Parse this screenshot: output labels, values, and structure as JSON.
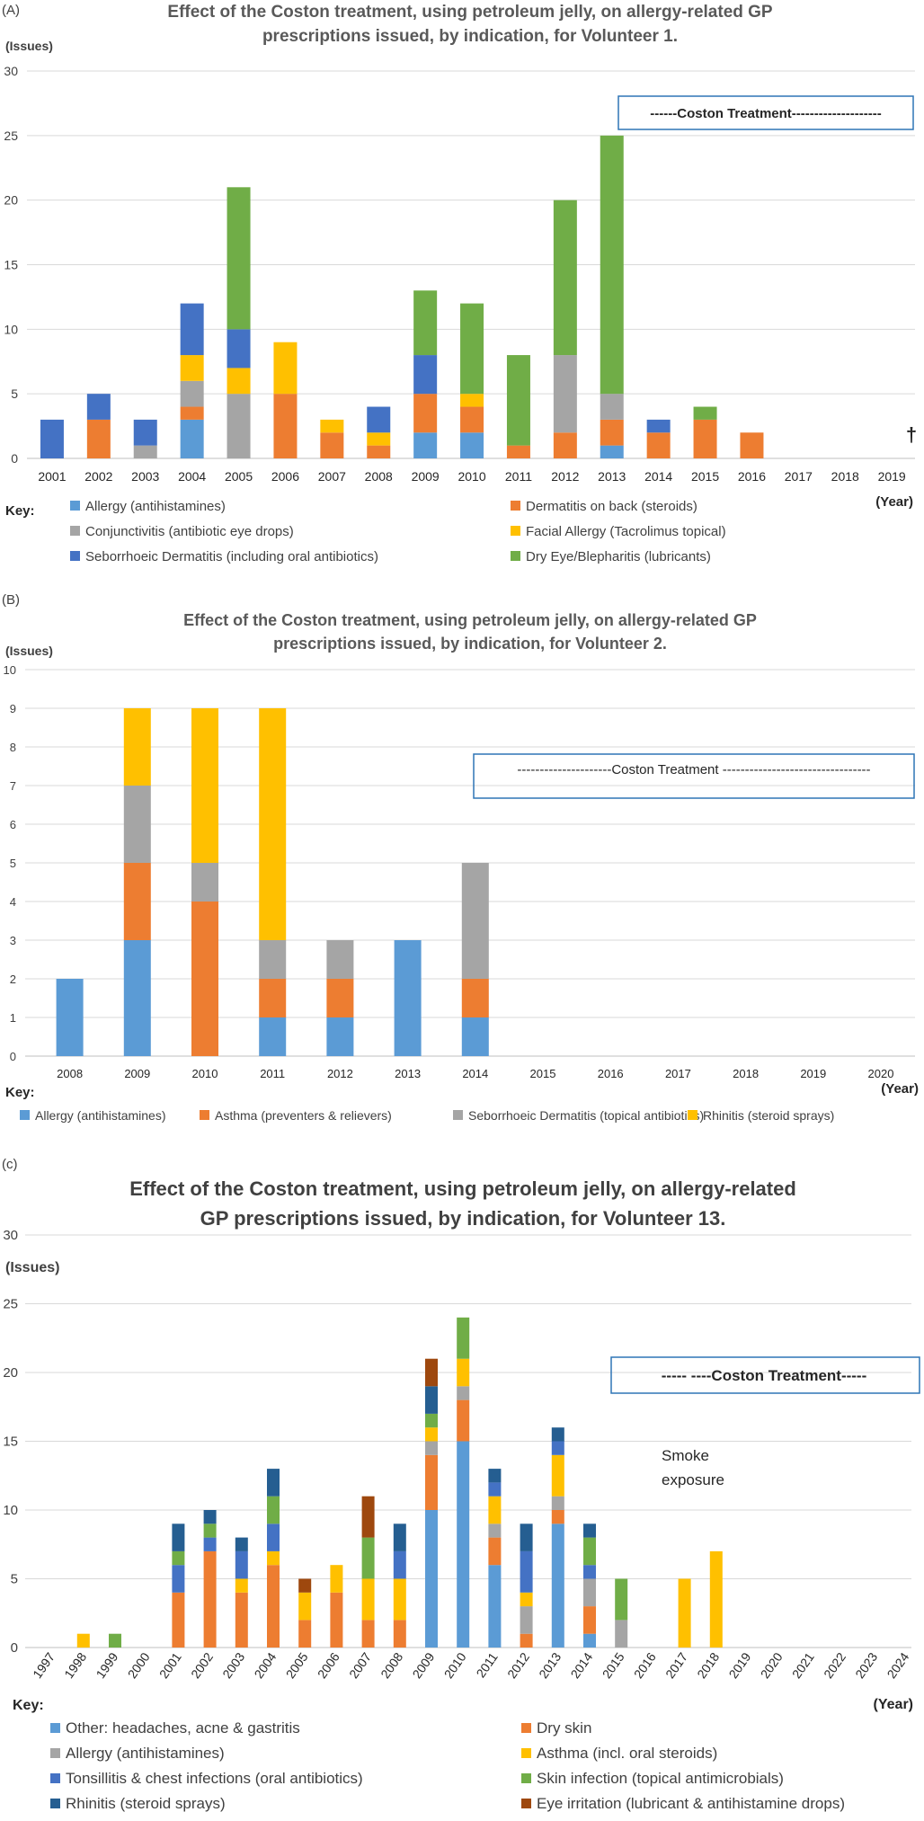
{
  "chart_data": [
    {
      "type": "bar",
      "stacked": true,
      "panel_label": "(A)",
      "title": [
        "Effect of the Coston treatment, using petroleum jelly, on allergy-related GP",
        "prescriptions issued, by indication, for Volunteer 1."
      ],
      "ylabel": "(Issues)",
      "xlabel": "(Year)",
      "key_label": "Key:",
      "ylim": [
        0,
        30
      ],
      "yticks": [
        0,
        5,
        10,
        15,
        20,
        25,
        30
      ],
      "categories": [
        "2001",
        "2002",
        "2003",
        "2004",
        "2005",
        "2006",
        "2007",
        "2008",
        "2009",
        "2010",
        "2011",
        "2012",
        "2013",
        "2014",
        "2015",
        "2016",
        "2017",
        "2018",
        "2019"
      ],
      "series": [
        {
          "name": "Allergy (antihistamines)",
          "color": "#5b9bd5",
          "values": [
            0,
            0,
            0,
            3,
            0,
            0,
            0,
            0,
            2,
            2,
            0,
            0,
            1,
            0,
            0,
            0,
            0,
            0,
            0
          ]
        },
        {
          "name": "Dermatitis on back (steroids)",
          "color": "#ed7d31",
          "values": [
            0,
            3,
            0,
            1,
            0,
            5,
            2,
            1,
            3,
            2,
            1,
            2,
            2,
            2,
            3,
            2,
            0,
            0,
            0
          ]
        },
        {
          "name": "Conjunctivitis (antibiotic eye drops)",
          "color": "#a5a5a5",
          "values": [
            0,
            0,
            1,
            2,
            5,
            0,
            0,
            0,
            0,
            0,
            0,
            6,
            2,
            0,
            0,
            0,
            0,
            0,
            0
          ]
        },
        {
          "name": "Facial Allergy (Tacrolimus topical)",
          "color": "#ffc000",
          "values": [
            0,
            0,
            0,
            2,
            2,
            4,
            1,
            1,
            0,
            1,
            0,
            0,
            0,
            0,
            0,
            0,
            0,
            0,
            0
          ]
        },
        {
          "name": "Seborrhoeic Dermatitis (including oral antibiotics)",
          "color": "#4472c4",
          "values": [
            3,
            2,
            2,
            4,
            3,
            0,
            0,
            2,
            3,
            0,
            0,
            0,
            0,
            1,
            0,
            0,
            0,
            0,
            0
          ]
        },
        {
          "name": "Dry Eye/Blepharitis (lubricants)",
          "color": "#70ad47",
          "values": [
            0,
            0,
            0,
            0,
            11,
            0,
            0,
            0,
            5,
            7,
            7,
            12,
            20,
            0,
            1,
            0,
            0,
            0,
            0
          ]
        }
      ],
      "annotations": {
        "coston": "------Coston Treatment--------------------",
        "dagger": "†"
      }
    },
    {
      "type": "bar",
      "stacked": true,
      "panel_label": "(B)",
      "title": [
        "Effect of the Coston treatment, using petroleum jelly, on allergy-related GP",
        "prescriptions issued, by indication, for Volunteer 2."
      ],
      "ylabel": "(Issues)",
      "xlabel": "(Year)",
      "key_label": "Key:",
      "ylim": [
        0,
        10
      ],
      "yticks": [
        0,
        1,
        2,
        3,
        4,
        5,
        6,
        7,
        8,
        9,
        10
      ],
      "categories": [
        "2008",
        "2009",
        "2010",
        "2011",
        "2012",
        "2013",
        "2014",
        "2015",
        "2016",
        "2017",
        "2018",
        "2019",
        "2020"
      ],
      "series": [
        {
          "name": "Allergy (antihistamines)",
          "color": "#5b9bd5",
          "values": [
            2,
            3,
            0,
            1,
            1,
            3,
            1,
            0,
            0,
            0,
            0,
            0,
            0
          ]
        },
        {
          "name": "Asthma (preventers & relievers)",
          "color": "#ed7d31",
          "values": [
            0,
            2,
            4,
            1,
            1,
            0,
            1,
            0,
            0,
            0,
            0,
            0,
            0
          ]
        },
        {
          "name": "Seborrhoeic Dermatitis (topical antibiotics)",
          "color": "#a5a5a5",
          "values": [
            0,
            2,
            1,
            1,
            1,
            0,
            3,
            0,
            0,
            0,
            0,
            0,
            0
          ]
        },
        {
          "name": "Rhinitis (steroid sprays)",
          "color": "#ffc000",
          "values": [
            0,
            2,
            4,
            6,
            0,
            0,
            0,
            0,
            0,
            0,
            0,
            0,
            0
          ]
        }
      ],
      "annotations": {
        "coston": "---------------------Coston Treatment ---------------------------------"
      }
    },
    {
      "type": "bar",
      "stacked": true,
      "panel_label": "(c)",
      "title": [
        "Effect of the Coston treatment, using petroleum jelly, on allergy-related",
        "GP prescriptions issued, by indication, for Volunteer 13."
      ],
      "ylabel": "(Issues)",
      "xlabel": "(Year)",
      "key_label": "Key:",
      "ylim": [
        0,
        30
      ],
      "yticks": [
        0,
        5,
        10,
        15,
        20,
        25,
        30
      ],
      "categories": [
        "1997",
        "1998",
        "1999",
        "2000",
        "2001",
        "2002",
        "2003",
        "2004",
        "2005",
        "2006",
        "2007",
        "2008",
        "2009",
        "2010",
        "2011",
        "2012",
        "2013",
        "2014",
        "2015",
        "2016",
        "2017",
        "2018",
        "2019",
        "2020",
        "2021",
        "2022",
        "2023",
        "2024"
      ],
      "series": [
        {
          "name": "Other: headaches, acne & gastritis",
          "color": "#5b9bd5",
          "values": [
            0,
            0,
            0,
            0,
            0,
            0,
            0,
            0,
            0,
            0,
            0,
            0,
            10,
            15,
            6,
            0,
            9,
            1,
            0,
            0,
            0,
            0,
            0,
            0,
            0,
            0,
            0,
            0
          ]
        },
        {
          "name": "Dry skin",
          "color": "#ed7d31",
          "values": [
            0,
            0,
            0,
            0,
            4,
            7,
            4,
            6,
            2,
            4,
            2,
            2,
            4,
            3,
            2,
            1,
            1,
            2,
            0,
            0,
            0,
            0,
            0,
            0,
            0,
            0,
            0,
            0
          ]
        },
        {
          "name": "Allergy (antihistamines)",
          "color": "#a5a5a5",
          "values": [
            0,
            0,
            0,
            0,
            0,
            0,
            0,
            0,
            0,
            0,
            0,
            0,
            1,
            1,
            1,
            2,
            1,
            2,
            2,
            0,
            0,
            0,
            0,
            0,
            0,
            0,
            0,
            0
          ]
        },
        {
          "name": "Asthma (incl. oral steroids)",
          "color": "#ffc000",
          "values": [
            0,
            1,
            0,
            0,
            0,
            0,
            1,
            1,
            2,
            2,
            3,
            3,
            1,
            2,
            2,
            1,
            3,
            0,
            0,
            0,
            5,
            7,
            0,
            0,
            0,
            0,
            0,
            0
          ]
        },
        {
          "name": "Tonsillitis & chest infections (oral antibiotics)",
          "color": "#4472c4",
          "values": [
            0,
            0,
            0,
            0,
            2,
            1,
            2,
            2,
            0,
            0,
            0,
            2,
            0,
            0,
            1,
            3,
            1,
            1,
            0,
            0,
            0,
            0,
            0,
            0,
            0,
            0,
            0,
            0
          ]
        },
        {
          "name": "Skin infection (topical antimicrobials)",
          "color": "#70ad47",
          "values": [
            0,
            0,
            1,
            0,
            1,
            1,
            0,
            2,
            0,
            0,
            3,
            0,
            1,
            3,
            0,
            0,
            0,
            2,
            3,
            0,
            0,
            0,
            0,
            0,
            0,
            0,
            0,
            0
          ]
        },
        {
          "name": "Rhinitis (steroid sprays)",
          "color": "#255e91",
          "values": [
            0,
            0,
            0,
            0,
            2,
            1,
            1,
            2,
            0,
            0,
            0,
            2,
            2,
            0,
            1,
            2,
            1,
            1,
            0,
            0,
            0,
            0,
            0,
            0,
            0,
            0,
            0,
            0
          ]
        },
        {
          "name": "Eye irritation (lubricant & antihistamine drops)",
          "color": "#9e480e",
          "values": [
            0,
            0,
            0,
            0,
            0,
            0,
            0,
            0,
            1,
            0,
            3,
            0,
            2,
            0,
            0,
            0,
            0,
            0,
            0,
            0,
            0,
            0,
            0,
            0,
            0,
            0,
            0,
            0
          ]
        }
      ],
      "annotations": {
        "coston": "-----              ----Coston Treatment-----",
        "smoke": [
          "Smoke",
          "exposure"
        ]
      }
    }
  ]
}
